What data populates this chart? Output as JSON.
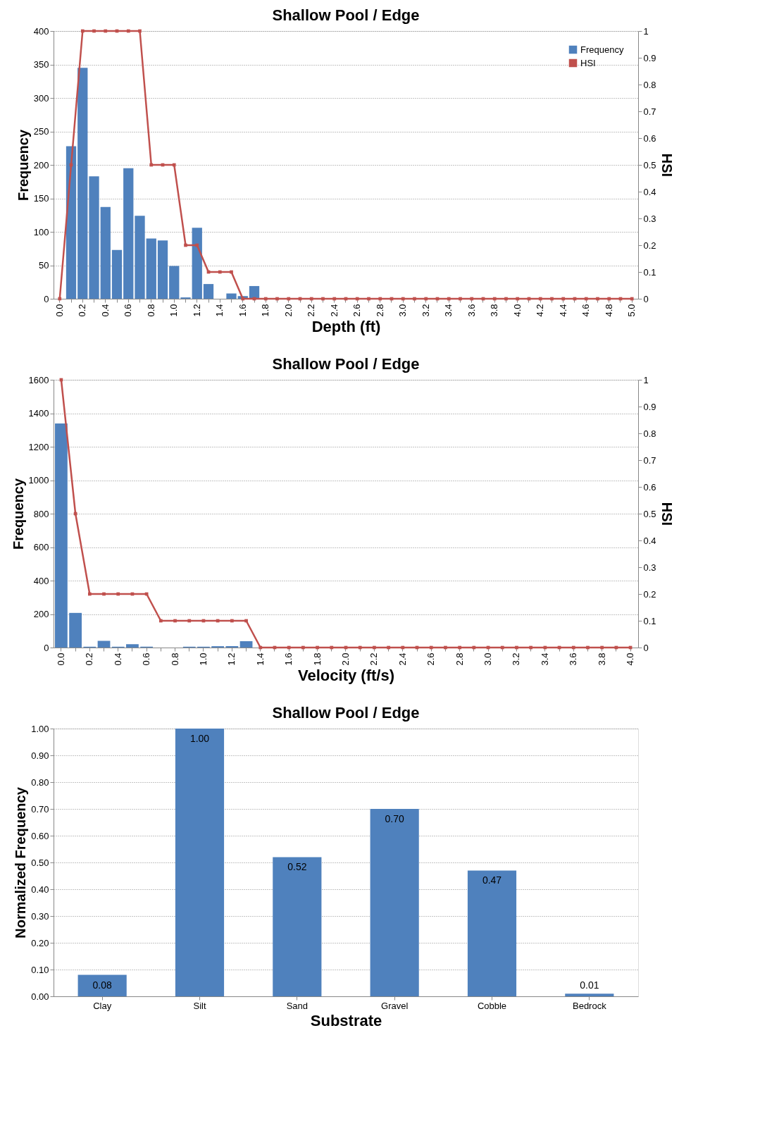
{
  "chart_data": [
    {
      "type": "bar",
      "title": "Shallow Pool / Edge",
      "xlabel": "Depth (ft)",
      "ylabel": "Frequency",
      "y2label": "HSI",
      "categories": [
        "0.0",
        null,
        "0.2",
        null,
        "0.4",
        null,
        "0.6",
        null,
        "0.8",
        null,
        "1.0",
        null,
        "1.2",
        null,
        "1.4",
        null,
        "1.6",
        null,
        "1.8",
        null,
        "2.0",
        null,
        "2.2",
        null,
        "2.4",
        null,
        "2.6",
        null,
        "2.8",
        null,
        "3.0",
        null,
        "3.2",
        null,
        "3.4",
        null,
        "3.6",
        null,
        "3.8",
        null,
        "4.0",
        null,
        "4.2",
        null,
        "4.4",
        null,
        "4.6",
        null,
        "4.8",
        null,
        "5.0"
      ],
      "series": [
        {
          "name": "Frequency",
          "color": "#4f81bd",
          "values": [
            0,
            228,
            345,
            183,
            137,
            73,
            195,
            124,
            90,
            87,
            49,
            2,
            106,
            22,
            0,
            8,
            4,
            19,
            0,
            0,
            0,
            0,
            0,
            0,
            0,
            0,
            0,
            0,
            0,
            0,
            0,
            0,
            0,
            0,
            0,
            0,
            0,
            0,
            0,
            0,
            0,
            0,
            0,
            0,
            0,
            0,
            0,
            0,
            0,
            0,
            0
          ]
        },
        {
          "name": "HSI",
          "color": "#c0504d",
          "type": "line",
          "axis": "y2",
          "values": [
            0,
            0.5,
            1,
            1,
            1,
            1,
            1,
            1,
            0.5,
            0.5,
            0.5,
            0.2,
            0.2,
            0.1,
            0.1,
            0.1,
            0,
            0,
            0,
            0,
            0,
            0,
            0,
            0,
            0,
            0,
            0,
            0,
            0,
            0,
            0,
            0,
            0,
            0,
            0,
            0,
            0,
            0,
            0,
            0,
            0,
            0,
            0,
            0,
            0,
            0,
            0,
            0,
            0,
            0,
            0
          ]
        }
      ],
      "ylim": [
        0,
        400
      ],
      "yticks": [
        0,
        50,
        100,
        150,
        200,
        250,
        300,
        350,
        400
      ],
      "y2lim": [
        0,
        1
      ],
      "y2ticks": [
        0,
        0.1,
        0.2,
        0.3,
        0.4,
        0.5,
        0.6,
        0.7,
        0.8,
        0.9,
        1
      ],
      "grid": "y",
      "legend": "top right",
      "marker": "square"
    },
    {
      "type": "bar",
      "title": "Shallow Pool / Edge",
      "xlabel": "Velocity (ft/s)",
      "ylabel": "Frequency",
      "y2label": "HSI",
      "categories": [
        "0.0",
        null,
        "0.2",
        null,
        "0.4",
        null,
        "0.6",
        null,
        "0.8",
        null,
        "1.0",
        null,
        "1.2",
        null,
        "1.4",
        null,
        "1.6",
        null,
        "1.8",
        null,
        "2.0",
        null,
        "2.2",
        null,
        "2.4",
        null,
        "2.6",
        null,
        "2.8",
        null,
        "3.0",
        null,
        "3.2",
        null,
        "3.4",
        null,
        "3.6",
        null,
        "3.8",
        null,
        "4.0"
      ],
      "series": [
        {
          "color": "#4f81bd",
          "values": [
            1339,
            207,
            5,
            40,
            5,
            20,
            5,
            0,
            0,
            5,
            5,
            8,
            8,
            38,
            0,
            0,
            0,
            0,
            0,
            0,
            0,
            0,
            0,
            0,
            0,
            0,
            0,
            0,
            0,
            0,
            0,
            0,
            0,
            0,
            0,
            0,
            0,
            0,
            0,
            0,
            0
          ]
        },
        {
          "color": "#c0504d",
          "type": "line",
          "axis": "y2",
          "values": [
            1,
            0.5,
            0.2,
            0.2,
            0.2,
            0.2,
            0.2,
            0.1,
            0.1,
            0.1,
            0.1,
            0.1,
            0.1,
            0.1,
            0,
            0,
            0,
            0,
            0,
            0,
            0,
            0,
            0,
            0,
            0,
            0,
            0,
            0,
            0,
            0,
            0,
            0,
            0,
            0,
            0,
            0,
            0,
            0,
            0,
            0,
            0
          ]
        }
      ],
      "ylim": [
        0,
        1600
      ],
      "yticks": [
        0,
        200,
        400,
        600,
        800,
        1000,
        1200,
        1400,
        1600
      ],
      "y2lim": [
        0,
        1
      ],
      "y2ticks": [
        0,
        0.1,
        0.2,
        0.3,
        0.4,
        0.5,
        0.6,
        0.7,
        0.8,
        0.9,
        1
      ],
      "grid": "y",
      "marker": "square"
    },
    {
      "type": "bar",
      "title": "Shallow Pool / Edge",
      "xlabel": "Substrate",
      "ylabel": "Normalized Frequency",
      "categories": [
        "Clay",
        "Silt",
        "Sand",
        "Gravel",
        "Cobble",
        "Bedrock"
      ],
      "series": [
        {
          "color": "#4f81bd",
          "values": [
            0.08,
            1.0,
            0.52,
            0.7,
            0.47,
            0.01
          ],
          "value_labels": [
            "0.08",
            "1.00",
            "0.52",
            "0.70",
            "0.47",
            "0.01"
          ]
        }
      ],
      "ylim": [
        0,
        1
      ],
      "yticks": [
        {
          "value": 0,
          "label": "0.00"
        },
        {
          "value": 0.1,
          "label": "0.10"
        },
        {
          "value": 0.2,
          "label": "0.20"
        },
        {
          "value": 0.3,
          "label": "0.30"
        },
        {
          "value": 0.4,
          "label": "0.40"
        },
        {
          "value": 0.5,
          "label": "0.50"
        },
        {
          "value": 0.6,
          "label": "0.60"
        },
        {
          "value": 0.7,
          "label": "0.70"
        },
        {
          "value": 0.8,
          "label": "0.80"
        },
        {
          "value": 0.9,
          "label": "0.90"
        },
        {
          "value": 1,
          "label": "1.00"
        }
      ],
      "grid": "y"
    }
  ]
}
